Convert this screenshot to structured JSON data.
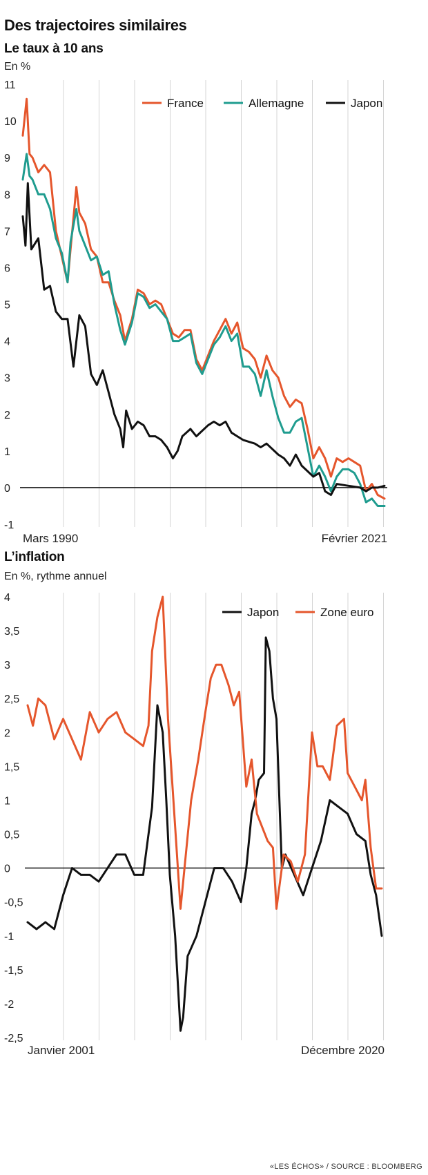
{
  "header": {
    "title": "Des trajectoires similaires",
    "source": "«LES ÉCHOS» / SOURCE : BLOOMBERG"
  },
  "chart_data": [
    {
      "type": "line",
      "title": "Le taux à 10 ans",
      "unit": "En %",
      "x_start": "Mars 1990",
      "x_end": "Février 2021",
      "x_range": [
        1990.17,
        2021.08
      ],
      "ylim": [
        -1,
        11
      ],
      "yticks": [
        -1,
        0,
        1,
        2,
        3,
        4,
        5,
        6,
        7,
        8,
        9,
        10,
        11
      ],
      "ytick_labels": [
        "-1",
        "0",
        "1",
        "2",
        "3",
        "4",
        "5",
        "6",
        "7",
        "8",
        "9",
        "10",
        "11"
      ],
      "grid": "vertical",
      "legend_position": "top-right",
      "series": [
        {
          "name": "France",
          "color": "#e5562c",
          "x": [
            1990.17,
            1990.5,
            1990.75,
            1991.0,
            1991.5,
            1992.0,
            1992.5,
            1993.0,
            1993.5,
            1994.0,
            1994.25,
            1994.75,
            1995.0,
            1995.5,
            1996.0,
            1996.5,
            1997.0,
            1997.5,
            1998.0,
            1998.5,
            1998.9,
            1999.5,
            2000.0,
            2000.5,
            2001.0,
            2001.5,
            2002.0,
            2002.5,
            2003.0,
            2003.5,
            2004.0,
            2004.5,
            2005.0,
            2005.5,
            2006.0,
            2006.5,
            2007.0,
            2007.5,
            2008.0,
            2008.5,
            2009.0,
            2009.5,
            2010.0,
            2010.5,
            2011.0,
            2011.5,
            2012.0,
            2012.5,
            2013.0,
            2013.5,
            2014.0,
            2014.5,
            2015.0,
            2015.5,
            2016.0,
            2016.5,
            2017.0,
            2017.5,
            2018.0,
            2018.5,
            2019.0,
            2019.5,
            2020.0,
            2020.5,
            2021.08
          ],
          "y": [
            9.6,
            10.6,
            9.1,
            9.0,
            8.6,
            8.8,
            8.6,
            7.0,
            6.3,
            5.6,
            6.5,
            8.2,
            7.5,
            7.2,
            6.5,
            6.3,
            5.6,
            5.6,
            5.1,
            4.7,
            4.0,
            4.6,
            5.4,
            5.3,
            5.0,
            5.1,
            5.0,
            4.6,
            4.2,
            4.1,
            4.3,
            4.3,
            3.5,
            3.2,
            3.6,
            4.0,
            4.3,
            4.6,
            4.2,
            4.5,
            3.8,
            3.7,
            3.5,
            3.0,
            3.6,
            3.2,
            3.0,
            2.5,
            2.2,
            2.4,
            2.3,
            1.6,
            0.8,
            1.1,
            0.8,
            0.3,
            0.8,
            0.7,
            0.8,
            0.7,
            0.6,
            -0.1,
            0.1,
            -0.2,
            -0.3
          ]
        },
        {
          "name": "Allemagne",
          "color": "#1f9c8f",
          "x": [
            1990.17,
            1990.5,
            1990.75,
            1991.0,
            1991.5,
            1992.0,
            1992.5,
            1993.0,
            1993.5,
            1994.0,
            1994.25,
            1994.75,
            1995.0,
            1995.5,
            1996.0,
            1996.5,
            1997.0,
            1997.5,
            1998.0,
            1998.5,
            1998.9,
            1999.5,
            2000.0,
            2000.5,
            2001.0,
            2001.5,
            2002.0,
            2002.5,
            2003.0,
            2003.5,
            2004.0,
            2004.5,
            2005.0,
            2005.5,
            2006.0,
            2006.5,
            2007.0,
            2007.5,
            2008.0,
            2008.5,
            2009.0,
            2009.5,
            2010.0,
            2010.5,
            2011.0,
            2011.5,
            2012.0,
            2012.5,
            2013.0,
            2013.5,
            2014.0,
            2014.5,
            2015.0,
            2015.5,
            2016.0,
            2016.5,
            2017.0,
            2017.5,
            2018.0,
            2018.5,
            2019.0,
            2019.5,
            2020.0,
            2020.5,
            2021.08
          ],
          "y": [
            8.4,
            9.1,
            8.5,
            8.4,
            8.0,
            8.0,
            7.6,
            6.8,
            6.4,
            5.6,
            6.7,
            7.6,
            7.0,
            6.6,
            6.2,
            6.3,
            5.8,
            5.9,
            5.0,
            4.3,
            3.9,
            4.5,
            5.3,
            5.2,
            4.9,
            5.0,
            4.8,
            4.6,
            4.0,
            4.0,
            4.1,
            4.2,
            3.4,
            3.1,
            3.5,
            3.9,
            4.1,
            4.4,
            4.0,
            4.2,
            3.3,
            3.3,
            3.1,
            2.5,
            3.2,
            2.5,
            1.9,
            1.5,
            1.5,
            1.8,
            1.9,
            1.1,
            0.3,
            0.6,
            0.3,
            -0.1,
            0.3,
            0.5,
            0.5,
            0.4,
            0.1,
            -0.4,
            -0.3,
            -0.5,
            -0.5
          ]
        },
        {
          "name": "Japon",
          "color": "#111111",
          "x": [
            1990.17,
            1990.4,
            1990.6,
            1990.9,
            1991.5,
            1992.0,
            1992.5,
            1993.0,
            1993.5,
            1994.0,
            1994.5,
            1995.0,
            1995.5,
            1996.0,
            1996.5,
            1997.0,
            1997.5,
            1998.0,
            1998.5,
            1998.75,
            1999.0,
            1999.5,
            2000.0,
            2000.5,
            2001.0,
            2001.5,
            2002.0,
            2002.5,
            2003.0,
            2003.4,
            2003.8,
            2004.5,
            2005.0,
            2006.0,
            2006.5,
            2007.0,
            2007.5,
            2008.0,
            2008.5,
            2009.0,
            2010.0,
            2010.5,
            2011.0,
            2012.0,
            2012.5,
            2013.0,
            2013.5,
            2014.0,
            2015.0,
            2015.5,
            2016.0,
            2016.5,
            2017.0,
            2018.0,
            2019.0,
            2019.5,
            2020.0,
            2020.5,
            2021.08
          ],
          "y": [
            7.4,
            6.6,
            8.3,
            6.5,
            6.8,
            5.4,
            5.5,
            4.8,
            4.6,
            4.6,
            3.3,
            4.7,
            4.4,
            3.1,
            2.8,
            3.2,
            2.6,
            2.0,
            1.6,
            1.1,
            2.1,
            1.6,
            1.8,
            1.7,
            1.4,
            1.4,
            1.3,
            1.1,
            0.8,
            1.0,
            1.4,
            1.6,
            1.4,
            1.7,
            1.8,
            1.7,
            1.8,
            1.5,
            1.4,
            1.3,
            1.2,
            1.1,
            1.2,
            0.9,
            0.8,
            0.6,
            0.9,
            0.6,
            0.3,
            0.4,
            -0.1,
            -0.2,
            0.1,
            0.05,
            0.0,
            -0.1,
            0.0,
            0.0,
            0.05
          ]
        }
      ]
    },
    {
      "type": "line",
      "title": "L’inflation",
      "unit": "En %, rythme annuel",
      "x_start": "Janvier 2001",
      "x_end": "Décembre 2020",
      "x_range": [
        2001.0,
        2020.92
      ],
      "ylim": [
        -2.5,
        4
      ],
      "yticks": [
        -2.5,
        -2,
        -1.5,
        -1,
        -0.5,
        0,
        0.5,
        1,
        1.5,
        2,
        2.5,
        3,
        3.5,
        4
      ],
      "ytick_labels": [
        "-2,5",
        "-2",
        "-1,5",
        "-1",
        "-0,5",
        "0",
        "0,5",
        "1",
        "1,5",
        "2",
        "2,5",
        "3",
        "3,5",
        "4"
      ],
      "grid": "vertical",
      "legend_position": "top-right",
      "series": [
        {
          "name": "Japon",
          "color": "#111111",
          "x": [
            2001.0,
            2001.5,
            2002.0,
            2002.5,
            2003.0,
            2003.5,
            2004.0,
            2004.5,
            2005.0,
            2005.5,
            2006.0,
            2006.5,
            2007.0,
            2007.5,
            2008.0,
            2008.3,
            2008.6,
            2008.8,
            2009.0,
            2009.3,
            2009.6,
            2009.75,
            2010.0,
            2010.5,
            2011.0,
            2011.5,
            2012.0,
            2012.5,
            2013.0,
            2013.3,
            2013.6,
            2013.8,
            2014.0,
            2014.3,
            2014.4,
            2014.6,
            2014.8,
            2015.0,
            2015.3,
            2015.5,
            2016.0,
            2016.5,
            2017.0,
            2017.5,
            2018.0,
            2018.5,
            2019.0,
            2019.5,
            2020.0,
            2020.3,
            2020.6,
            2020.92
          ],
          "y": [
            -0.8,
            -0.9,
            -0.8,
            -0.9,
            -0.4,
            0.0,
            -0.1,
            -0.1,
            -0.2,
            0.0,
            0.2,
            0.2,
            -0.1,
            -0.1,
            0.9,
            2.4,
            2.0,
            1.0,
            -0.1,
            -1.0,
            -2.4,
            -2.2,
            -1.3,
            -1.0,
            -0.5,
            0.0,
            0.0,
            -0.2,
            -0.5,
            0.0,
            0.8,
            1.0,
            1.3,
            1.4,
            3.4,
            3.2,
            2.5,
            2.2,
            0.0,
            0.2,
            -0.1,
            -0.4,
            0.0,
            0.4,
            1.0,
            0.9,
            0.8,
            0.5,
            0.4,
            -0.1,
            -0.4,
            -1.0
          ]
        },
        {
          "name": "Zone euro",
          "color": "#e5562c",
          "x": [
            2001.0,
            2001.3,
            2001.6,
            2002.0,
            2002.5,
            2003.0,
            2003.5,
            2004.0,
            2004.5,
            2005.0,
            2005.5,
            2006.0,
            2006.5,
            2007.0,
            2007.5,
            2007.8,
            2008.0,
            2008.3,
            2008.6,
            2008.9,
            2009.2,
            2009.6,
            2009.9,
            2010.2,
            2010.6,
            2011.0,
            2011.3,
            2011.6,
            2011.9,
            2012.3,
            2012.6,
            2012.9,
            2013.3,
            2013.6,
            2013.9,
            2014.2,
            2014.5,
            2014.8,
            2015.0,
            2015.4,
            2015.8,
            2016.2,
            2016.6,
            2017.0,
            2017.3,
            2017.6,
            2018.0,
            2018.4,
            2018.8,
            2019.0,
            2019.4,
            2019.8,
            2020.0,
            2020.3,
            2020.6,
            2020.92
          ],
          "y": [
            2.4,
            2.1,
            2.5,
            2.4,
            1.9,
            2.2,
            1.9,
            1.6,
            2.3,
            2.0,
            2.2,
            2.3,
            2.0,
            1.9,
            1.8,
            2.1,
            3.2,
            3.7,
            4.0,
            2.2,
            1.0,
            -0.6,
            0.2,
            1.0,
            1.6,
            2.3,
            2.8,
            3.0,
            3.0,
            2.7,
            2.4,
            2.6,
            1.2,
            1.6,
            0.8,
            0.6,
            0.4,
            0.3,
            -0.6,
            0.2,
            0.1,
            -0.2,
            0.2,
            2.0,
            1.5,
            1.5,
            1.3,
            2.1,
            2.2,
            1.4,
            1.2,
            1.0,
            1.3,
            0.3,
            -0.3,
            -0.3
          ]
        }
      ]
    }
  ]
}
